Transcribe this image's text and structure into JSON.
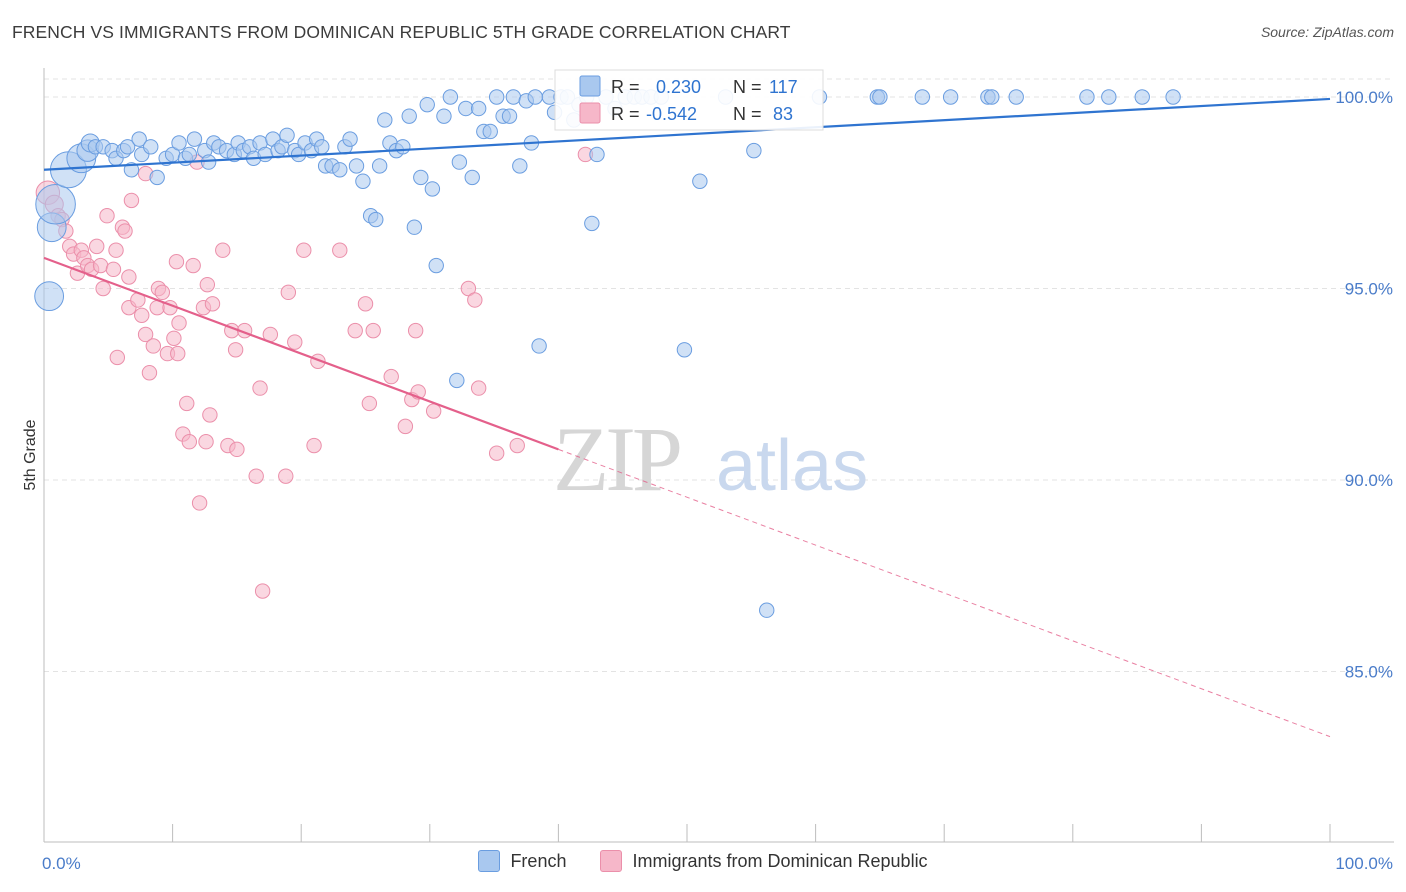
{
  "title": "FRENCH VS IMMIGRANTS FROM DOMINICAN REPUBLIC 5TH GRADE CORRELATION CHART",
  "source": "Source: ZipAtlas.com",
  "watermark": {
    "zip": "ZIP",
    "atlas": "atlas"
  },
  "stats": {
    "french": {
      "r_label": "R =",
      "r_value": "0.230",
      "n_label": "N =",
      "n_value": "117"
    },
    "dominican": {
      "r_label": "R =",
      "r_value": "-0.542",
      "n_label": "N =",
      "n_value": "83"
    }
  },
  "colors": {
    "french_fill": "#a9c8ef",
    "french_stroke": "#6a9de0",
    "french_line": "#2f74d0",
    "dominican_fill": "#f6b7c9",
    "dominican_stroke": "#eb8faa",
    "dominican_line": "#e4608b",
    "tick_label": "#4a7cc9",
    "grid": "#e3e3e3"
  },
  "chart_data": {
    "type": "scatter",
    "title": "FRENCH VS IMMIGRANTS FROM DOMINICAN REPUBLIC 5TH GRADE CORRELATION CHART",
    "xlabel": "",
    "ylabel": "5th Grade",
    "xlim": [
      0,
      100
    ],
    "ylim": [
      80.5,
      100.8
    ],
    "x_tick_labels": [
      "0.0%",
      "100.0%"
    ],
    "y_ticks": [
      85,
      90,
      95,
      100
    ],
    "y_tick_labels": [
      "85.0%",
      "90.0%",
      "95.0%",
      "100.0%"
    ],
    "grid": true,
    "legend_position": "bottom",
    "series": [
      {
        "name": "French",
        "r": 0.23,
        "n": 117,
        "trend": {
          "x0": 0,
          "y0": 98.1,
          "x1": 100,
          "y1": 99.95
        },
        "points": [
          [
            0.4,
            94.8,
            1.6
          ],
          [
            0.6,
            96.6,
            1.6
          ],
          [
            0.9,
            97.2,
            2.2
          ],
          [
            1.9,
            98.1,
            2.0
          ],
          [
            2.9,
            98.4,
            1.6
          ],
          [
            3.4,
            98.6,
            1.2
          ],
          [
            3.6,
            98.8,
            1.0
          ],
          [
            4.0,
            98.7,
            0.8
          ],
          [
            4.6,
            98.7,
            0.8
          ],
          [
            5.3,
            98.6,
            0.8
          ],
          [
            5.6,
            98.4,
            0.8
          ],
          [
            6.2,
            98.6,
            0.8
          ],
          [
            6.5,
            98.7,
            0.8
          ],
          [
            6.8,
            98.1,
            0.8
          ],
          [
            7.4,
            98.9,
            0.8
          ],
          [
            7.6,
            98.5,
            0.8
          ],
          [
            8.3,
            98.7,
            0.8
          ],
          [
            8.8,
            97.9,
            0.8
          ],
          [
            9.5,
            98.4,
            0.8
          ],
          [
            10.0,
            98.5,
            0.8
          ],
          [
            10.5,
            98.8,
            0.8
          ],
          [
            11.0,
            98.4,
            0.8
          ],
          [
            11.3,
            98.5,
            0.8
          ],
          [
            11.7,
            98.9,
            0.8
          ],
          [
            12.5,
            98.6,
            0.8
          ],
          [
            12.8,
            98.3,
            0.8
          ],
          [
            13.2,
            98.8,
            0.8
          ],
          [
            13.6,
            98.7,
            0.8
          ],
          [
            14.2,
            98.6,
            0.8
          ],
          [
            14.8,
            98.5,
            0.8
          ],
          [
            15.1,
            98.8,
            0.8
          ],
          [
            15.5,
            98.6,
            0.8
          ],
          [
            16.0,
            98.7,
            0.8
          ],
          [
            16.3,
            98.4,
            0.8
          ],
          [
            16.8,
            98.8,
            0.8
          ],
          [
            17.2,
            98.5,
            0.8
          ],
          [
            17.8,
            98.9,
            0.8
          ],
          [
            18.2,
            98.6,
            0.8
          ],
          [
            18.5,
            98.7,
            0.8
          ],
          [
            18.9,
            99.0,
            0.8
          ],
          [
            19.5,
            98.6,
            0.8
          ],
          [
            19.8,
            98.5,
            0.8
          ],
          [
            20.3,
            98.8,
            0.8
          ],
          [
            20.8,
            98.6,
            0.8
          ],
          [
            21.2,
            98.9,
            0.8
          ],
          [
            21.6,
            98.7,
            0.8
          ],
          [
            21.9,
            98.2,
            0.8
          ],
          [
            22.4,
            98.2,
            0.8
          ],
          [
            23.0,
            98.1,
            0.8
          ],
          [
            23.4,
            98.7,
            0.8
          ],
          [
            23.8,
            98.9,
            0.8
          ],
          [
            24.3,
            98.2,
            0.8
          ],
          [
            24.8,
            97.8,
            0.8
          ],
          [
            25.4,
            96.9,
            0.8
          ],
          [
            25.8,
            96.8,
            0.8
          ],
          [
            26.1,
            98.2,
            0.8
          ],
          [
            26.5,
            99.4,
            0.8
          ],
          [
            26.9,
            98.8,
            0.8
          ],
          [
            27.4,
            98.6,
            0.8
          ],
          [
            27.9,
            98.7,
            0.8
          ],
          [
            28.4,
            99.5,
            0.8
          ],
          [
            28.8,
            96.6,
            0.8
          ],
          [
            29.3,
            97.9,
            0.8
          ],
          [
            29.8,
            99.8,
            0.8
          ],
          [
            30.2,
            97.6,
            0.8
          ],
          [
            30.5,
            95.6,
            0.8
          ],
          [
            31.1,
            99.5,
            0.8
          ],
          [
            31.6,
            100.0,
            0.8
          ],
          [
            32.3,
            98.3,
            0.8
          ],
          [
            32.8,
            99.7,
            0.8
          ],
          [
            33.3,
            97.9,
            0.8
          ],
          [
            33.8,
            99.7,
            0.8
          ],
          [
            34.2,
            99.1,
            0.8
          ],
          [
            34.7,
            99.1,
            0.8
          ],
          [
            35.2,
            100.0,
            0.8
          ],
          [
            35.7,
            99.5,
            0.8
          ],
          [
            36.2,
            99.5,
            0.8
          ],
          [
            36.5,
            100.0,
            0.8
          ],
          [
            37.0,
            98.2,
            0.8
          ],
          [
            37.5,
            99.9,
            0.8
          ],
          [
            37.9,
            98.8,
            0.8
          ],
          [
            38.2,
            100.0,
            0.8
          ],
          [
            38.5,
            93.5,
            0.8
          ],
          [
            39.3,
            100.0,
            0.8
          ],
          [
            39.7,
            99.6,
            0.8
          ],
          [
            40.2,
            100.0,
            0.8
          ],
          [
            40.7,
            100.0,
            0.8
          ],
          [
            41.2,
            99.4,
            0.8
          ],
          [
            41.6,
            99.8,
            0.8
          ],
          [
            42.2,
            100.0,
            0.8
          ],
          [
            42.6,
            96.7,
            0.8
          ],
          [
            43.0,
            98.5,
            0.8
          ],
          [
            43.7,
            100.0,
            0.8
          ],
          [
            44.4,
            99.7,
            0.8
          ],
          [
            45.2,
            100.0,
            0.8
          ],
          [
            45.9,
            100.0,
            0.8
          ],
          [
            46.5,
            100.0,
            0.8
          ],
          [
            47.2,
            100.0,
            0.8
          ],
          [
            48.0,
            100.0,
            0.8
          ],
          [
            49.8,
            93.4,
            0.8
          ],
          [
            51.0,
            97.8,
            0.8
          ],
          [
            53.0,
            100.0,
            0.8
          ],
          [
            55.2,
            98.6,
            0.8
          ],
          [
            56.2,
            86.6,
            0.8
          ],
          [
            60.3,
            100.0,
            0.8
          ],
          [
            64.8,
            100.0,
            0.8
          ],
          [
            65.0,
            100.0,
            0.8
          ],
          [
            68.3,
            100.0,
            0.8
          ],
          [
            70.5,
            100.0,
            0.8
          ],
          [
            73.4,
            100.0,
            0.8
          ],
          [
            73.7,
            100.0,
            0.8
          ],
          [
            75.6,
            100.0,
            0.8
          ],
          [
            81.1,
            100.0,
            0.8
          ],
          [
            82.8,
            100.0,
            0.8
          ],
          [
            85.4,
            100.0,
            0.8
          ],
          [
            87.8,
            100.0,
            0.8
          ],
          [
            32.1,
            92.6,
            0.8
          ]
        ]
      },
      {
        "name": "Immigrants from Dominican Republic",
        "r": -0.542,
        "n": 83,
        "trend": {
          "x0": 0,
          "y0": 95.8,
          "x1": 40,
          "y1": 90.8,
          "dash_x1": 100,
          "dash_y1": 83.3
        },
        "points": [
          [
            0.3,
            97.5,
            1.3
          ],
          [
            0.8,
            97.2,
            1.0
          ],
          [
            1.1,
            96.9,
            0.8
          ],
          [
            1.4,
            96.8,
            0.8
          ],
          [
            1.7,
            96.5,
            0.8
          ],
          [
            2.0,
            96.1,
            0.8
          ],
          [
            2.3,
            95.9,
            0.8
          ],
          [
            2.6,
            95.4,
            0.8
          ],
          [
            2.9,
            96.0,
            0.8
          ],
          [
            3.1,
            95.8,
            0.8
          ],
          [
            3.4,
            95.6,
            0.8
          ],
          [
            3.7,
            95.5,
            0.8
          ],
          [
            4.1,
            96.1,
            0.8
          ],
          [
            4.4,
            95.6,
            0.8
          ],
          [
            4.6,
            95.0,
            0.8
          ],
          [
            4.9,
            96.9,
            0.8
          ],
          [
            5.4,
            95.5,
            0.8
          ],
          [
            5.6,
            96.0,
            0.8
          ],
          [
            5.7,
            93.2,
            0.8
          ],
          [
            6.1,
            96.6,
            0.8
          ],
          [
            6.3,
            96.5,
            0.8
          ],
          [
            6.6,
            95.3,
            0.8
          ],
          [
            6.6,
            94.5,
            0.8
          ],
          [
            6.8,
            97.3,
            0.8
          ],
          [
            7.3,
            94.7,
            0.8
          ],
          [
            7.6,
            94.3,
            0.8
          ],
          [
            7.9,
            98.0,
            0.8
          ],
          [
            7.9,
            93.8,
            0.8
          ],
          [
            8.2,
            92.8,
            0.8
          ],
          [
            8.5,
            93.5,
            0.8
          ],
          [
            8.8,
            94.5,
            0.8
          ],
          [
            8.9,
            95.0,
            0.8
          ],
          [
            9.2,
            94.9,
            0.8
          ],
          [
            9.6,
            93.3,
            0.8
          ],
          [
            9.8,
            94.5,
            0.8
          ],
          [
            10.1,
            93.7,
            0.8
          ],
          [
            10.3,
            95.7,
            0.8
          ],
          [
            10.4,
            93.3,
            0.8
          ],
          [
            10.5,
            94.1,
            0.8
          ],
          [
            10.8,
            91.2,
            0.8
          ],
          [
            11.1,
            92.0,
            0.8
          ],
          [
            11.3,
            91.0,
            0.8
          ],
          [
            11.6,
            95.6,
            0.8
          ],
          [
            11.9,
            98.3,
            0.8
          ],
          [
            12.1,
            89.4,
            0.8
          ],
          [
            12.4,
            94.5,
            0.8
          ],
          [
            12.6,
            91.0,
            0.8
          ],
          [
            12.7,
            95.1,
            0.8
          ],
          [
            12.9,
            91.7,
            0.8
          ],
          [
            13.1,
            94.6,
            0.8
          ],
          [
            13.9,
            96.0,
            0.8
          ],
          [
            14.3,
            90.9,
            0.8
          ],
          [
            14.6,
            93.9,
            0.8
          ],
          [
            14.9,
            93.4,
            0.8
          ],
          [
            15.0,
            90.8,
            0.8
          ],
          [
            15.6,
            93.9,
            0.8
          ],
          [
            16.5,
            90.1,
            0.8
          ],
          [
            16.8,
            92.4,
            0.8
          ],
          [
            17.0,
            87.1,
            0.8
          ],
          [
            17.6,
            93.8,
            0.8
          ],
          [
            18.8,
            90.1,
            0.8
          ],
          [
            19.0,
            94.9,
            0.8
          ],
          [
            19.5,
            93.6,
            0.8
          ],
          [
            20.2,
            96.0,
            0.8
          ],
          [
            21.0,
            90.9,
            0.8
          ],
          [
            21.3,
            93.1,
            0.8
          ],
          [
            23.0,
            96.0,
            0.8
          ],
          [
            24.2,
            93.9,
            0.8
          ],
          [
            25.0,
            94.6,
            0.8
          ],
          [
            25.3,
            92.0,
            0.8
          ],
          [
            25.6,
            93.9,
            0.8
          ],
          [
            27.0,
            92.7,
            0.8
          ],
          [
            28.1,
            91.4,
            0.8
          ],
          [
            28.6,
            92.1,
            0.8
          ],
          [
            28.9,
            93.9,
            0.8
          ],
          [
            29.1,
            92.3,
            0.8
          ],
          [
            30.3,
            91.8,
            0.8
          ],
          [
            33.0,
            95.0,
            0.8
          ],
          [
            33.5,
            94.7,
            0.8
          ],
          [
            33.8,
            92.4,
            0.8
          ],
          [
            35.2,
            90.7,
            0.8
          ],
          [
            36.8,
            90.9,
            0.8
          ],
          [
            42.1,
            98.5,
            0.8
          ]
        ]
      }
    ]
  },
  "legend": {
    "french": "French",
    "dominican": "Immigrants from Dominican Republic"
  }
}
